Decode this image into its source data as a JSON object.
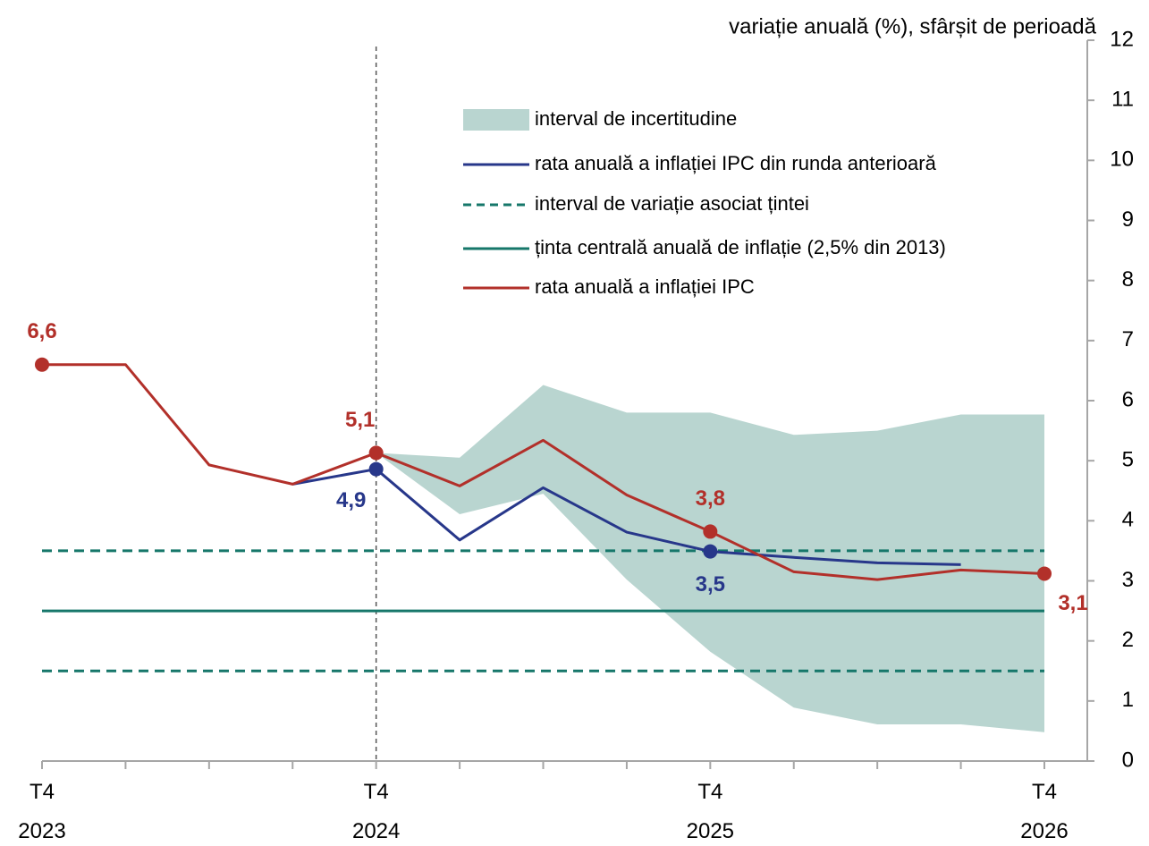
{
  "chart_data": {
    "type": "line",
    "title": "variație anuală (%), sfârșit de perioadă",
    "categories": [
      "T4 2023",
      null,
      null,
      null,
      "T4 2024",
      null,
      null,
      null,
      "T4 2025",
      null,
      null,
      null,
      "T4 2026"
    ],
    "ylim": [
      0,
      12
    ],
    "yticks": [
      0,
      1,
      2,
      3,
      4,
      5,
      6,
      7,
      8,
      9,
      10,
      11,
      12
    ],
    "y_axis_side": "right",
    "series": [
      {
        "name": "interval de incertitudine",
        "color": "#b9d5d0",
        "lower": [
          null,
          null,
          null,
          null,
          5.13,
          4.11,
          4.45,
          3.02,
          1.82,
          0.89,
          0.61,
          0.61,
          0.48
        ],
        "upper": [
          null,
          null,
          null,
          null,
          5.13,
          5.05,
          6.26,
          5.8,
          5.8,
          5.43,
          5.5,
          5.77,
          5.77
        ]
      },
      {
        "name": "rata anuală a inflației IPC din runda anterioară",
        "color": "#27378a",
        "values": [
          null,
          null,
          null,
          4.61,
          4.86,
          3.68,
          4.55,
          3.81,
          3.49,
          3.39,
          3.3,
          3.27,
          null
        ],
        "value_labels": [
          null,
          null,
          null,
          null,
          "4,9",
          null,
          null,
          null,
          "3,5",
          null,
          null,
          null,
          null
        ]
      },
      {
        "name": "interval de variație asociat țintei",
        "color": "#16776a",
        "dashed": true,
        "levels": [
          1.5,
          3.5
        ]
      },
      {
        "name": "ținta centrală anuală de inflație (2,5% din 2013)",
        "color": "#16776a",
        "levels": [
          2.5
        ]
      },
      {
        "name": "rata anuală a inflației IPC",
        "color": "#b2302a",
        "values": [
          6.6,
          6.6,
          4.93,
          4.61,
          5.13,
          4.58,
          5.34,
          4.43,
          3.82,
          3.15,
          3.02,
          3.18,
          3.12
        ],
        "value_labels": [
          "6,6",
          null,
          null,
          null,
          "5,1",
          null,
          null,
          null,
          "3,8",
          null,
          null,
          null,
          "3,1"
        ]
      }
    ]
  }
}
